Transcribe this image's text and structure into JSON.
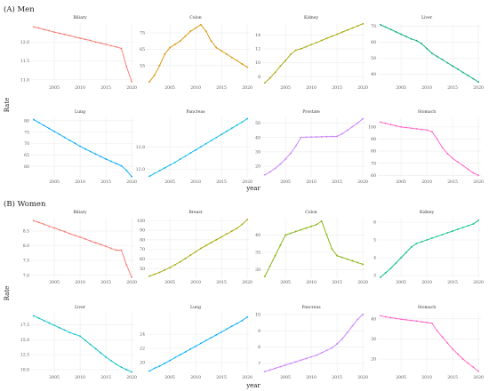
{
  "sections": [
    {
      "title": "(A) Men"
    },
    {
      "title": "(B) Women"
    }
  ],
  "y_label": "Rate",
  "x_label": "year",
  "chart_data": [
    {
      "type": "line",
      "section": "(A) Men",
      "title": "Biliary",
      "color": "#f8766d",
      "x": [
        2001,
        2002,
        2003,
        2004,
        2005,
        2006,
        2007,
        2008,
        2009,
        2010,
        2011,
        2012,
        2013,
        2014,
        2015,
        2016,
        2017,
        2018,
        2019,
        2020
      ],
      "values": [
        12.4,
        12.37,
        12.33,
        12.3,
        12.26,
        12.23,
        12.2,
        12.17,
        12.13,
        12.1,
        12.07,
        12.04,
        12.0,
        11.97,
        11.94,
        11.9,
        11.87,
        11.83,
        11.35,
        10.95
      ],
      "ylim": [
        10.9,
        12.5
      ],
      "yticks": [
        11.0,
        11.5,
        12.0
      ],
      "xticks": [
        2005,
        2010,
        2015,
        2020
      ]
    },
    {
      "type": "line",
      "section": "(A) Men",
      "title": "Colon",
      "color": "#d89000",
      "x": [
        2001,
        2002,
        2003,
        2004,
        2005,
        2006,
        2007,
        2008,
        2009,
        2010,
        2011,
        2012,
        2013,
        2014,
        2015,
        2016,
        2017,
        2018,
        2019,
        2020
      ],
      "values": [
        45,
        49,
        55,
        62,
        66,
        68,
        70,
        73,
        76,
        78,
        80,
        76,
        70,
        66,
        64,
        62,
        60,
        58,
        56,
        54
      ],
      "ylim": [
        44,
        81
      ],
      "yticks": [
        55,
        65,
        75
      ],
      "xticks": [
        2005,
        2010,
        2015,
        2020
      ]
    },
    {
      "type": "line",
      "section": "(A) Men",
      "title": "Kidney",
      "color": "#a3a500",
      "x": [
        2001,
        2002,
        2003,
        2004,
        2005,
        2006,
        2007,
        2008,
        2009,
        2010,
        2011,
        2012,
        2013,
        2014,
        2015,
        2016,
        2017,
        2018,
        2019,
        2020
      ],
      "values": [
        7.1,
        7.8,
        8.6,
        9.5,
        10.3,
        11.2,
        11.8,
        12.0,
        12.3,
        12.6,
        12.9,
        13.2,
        13.5,
        13.8,
        14.1,
        14.4,
        14.7,
        15.0,
        15.3,
        15.6
      ],
      "ylim": [
        7.0,
        15.7
      ],
      "yticks": [
        8,
        10,
        12,
        14
      ],
      "xticks": [
        2005,
        2010,
        2015,
        2020
      ]
    },
    {
      "type": "line",
      "section": "(A) Men",
      "title": "Liver",
      "color": "#00b06f",
      "x": [
        2001,
        2002,
        2003,
        2004,
        2005,
        2006,
        2007,
        2008,
        2009,
        2010,
        2011,
        2012,
        2013,
        2014,
        2015,
        2016,
        2017,
        2018,
        2019,
        2020
      ],
      "values": [
        71,
        69.5,
        68,
        66.5,
        65,
        63.5,
        62,
        61,
        59,
        56,
        53,
        51,
        49,
        47,
        45,
        43,
        41,
        39,
        37,
        35
      ],
      "ylim": [
        34,
        72
      ],
      "yticks": [
        40,
        50,
        60,
        70
      ],
      "xticks": [
        2005,
        2010,
        2015,
        2020
      ]
    },
    {
      "type": "line",
      "section": "(A) Men",
      "title": "Lung",
      "color": "#00a9ff",
      "x": [
        2001,
        2002,
        2003,
        2004,
        2005,
        2006,
        2007,
        2008,
        2009,
        2010,
        2011,
        2012,
        2013,
        2014,
        2015,
        2016,
        2017,
        2018,
        2019,
        2020
      ],
      "values": [
        80.5,
        79.2,
        77.9,
        76.6,
        75.3,
        74.0,
        72.7,
        71.4,
        70.1,
        68.8,
        67.6,
        66.5,
        65.4,
        64.3,
        63.2,
        62.2,
        61.2,
        60.2,
        58.2,
        55.5
      ],
      "ylim": [
        55,
        81.5
      ],
      "yticks": [
        60,
        65,
        70,
        75,
        80
      ],
      "xticks": [
        2005,
        2010,
        2015,
        2020
      ]
    },
    {
      "type": "line",
      "section": "(A) Men",
      "title": "Pancreas",
      "color": "#00b8e7",
      "x": [
        2001,
        2002,
        2003,
        2004,
        2005,
        2006,
        2007,
        2008,
        2009,
        2010,
        2011,
        2012,
        2013,
        2014,
        2015,
        2016,
        2017,
        2018,
        2019,
        2020
      ],
      "values": [
        11.75,
        11.85,
        11.95,
        12.05,
        12.15,
        12.25,
        12.36,
        12.47,
        12.58,
        12.69,
        12.8,
        12.91,
        13.02,
        13.13,
        13.24,
        13.35,
        13.46,
        13.57,
        13.68,
        13.8
      ],
      "ylim": [
        11.7,
        13.85
      ],
      "yticks": [
        12.0,
        12.8
      ],
      "xticks": [
        2005,
        2010,
        2015,
        2020
      ]
    },
    {
      "type": "line",
      "section": "(A) Men",
      "title": "Prostate",
      "color": "#c77cff",
      "x": [
        2001,
        2002,
        2003,
        2004,
        2005,
        2006,
        2007,
        2008,
        2009,
        2010,
        2011,
        2012,
        2013,
        2014,
        2015,
        2016,
        2017,
        2018,
        2019,
        2020
      ],
      "values": [
        14,
        16,
        18.5,
        21.5,
        25,
        29,
        34,
        40,
        40.2,
        40.3,
        40.4,
        40.5,
        40.6,
        40.7,
        40.8,
        42.5,
        45,
        47.5,
        50,
        53
      ],
      "ylim": [
        12,
        54
      ],
      "yticks": [
        20,
        30,
        40,
        50
      ],
      "xticks": [
        2005,
        2010,
        2015,
        2020
      ]
    },
    {
      "type": "line",
      "section": "(A) Men",
      "title": "Stomach",
      "color": "#ff61c3",
      "x": [
        2001,
        2002,
        2003,
        2004,
        2005,
        2006,
        2007,
        2008,
        2009,
        2010,
        2011,
        2012,
        2013,
        2014,
        2015,
        2016,
        2017,
        2018,
        2019,
        2020
      ],
      "values": [
        104,
        103,
        102,
        101,
        100,
        99.5,
        99,
        98.5,
        98,
        97.5,
        96,
        90,
        83,
        78,
        74,
        71,
        68,
        65,
        62,
        60
      ],
      "ylim": [
        58,
        108
      ],
      "yticks": [
        60,
        70,
        80,
        90,
        100
      ],
      "xticks": [
        2005,
        2010,
        2015,
        2020
      ]
    },
    {
      "type": "line",
      "section": "(B) Women",
      "title": "Biliary",
      "color": "#f8766d",
      "x": [
        2001,
        2002,
        2003,
        2004,
        2005,
        2006,
        2007,
        2008,
        2009,
        2010,
        2011,
        2012,
        2013,
        2014,
        2015,
        2016,
        2017,
        2018,
        2019,
        2020
      ],
      "values": [
        8.85,
        8.79,
        8.73,
        8.66,
        8.6,
        8.54,
        8.48,
        8.41,
        8.35,
        8.29,
        8.23,
        8.16,
        8.1,
        8.04,
        7.98,
        7.91,
        7.85,
        7.85,
        7.35,
        6.93
      ],
      "ylim": [
        6.9,
        8.95
      ],
      "yticks": [
        7.0,
        7.5,
        8.0,
        8.5
      ],
      "xticks": [
        2005,
        2010,
        2015,
        2020
      ]
    },
    {
      "type": "line",
      "section": "(B) Women",
      "title": "Breast",
      "color": "#a3a500",
      "x": [
        2001,
        2002,
        2003,
        2004,
        2005,
        2006,
        2007,
        2008,
        2009,
        2010,
        2011,
        2012,
        2013,
        2014,
        2015,
        2016,
        2017,
        2018,
        2019,
        2020
      ],
      "values": [
        42,
        44,
        46,
        48.5,
        51,
        54,
        57,
        60.5,
        64,
        67.5,
        71,
        74,
        77,
        80,
        83,
        86,
        89,
        92,
        96,
        101
      ],
      "ylim": [
        40,
        103
      ],
      "yticks": [
        50,
        60,
        70,
        80,
        90,
        100
      ],
      "xticks": [
        2005,
        2010,
        2015,
        2020
      ]
    },
    {
      "type": "line",
      "section": "(B) Women",
      "title": "Colon",
      "color": "#7cae00",
      "x": [
        2001,
        2002,
        2003,
        2004,
        2005,
        2006,
        2007,
        2008,
        2009,
        2010,
        2011,
        2012,
        2013,
        2014,
        2015,
        2016,
        2017,
        2018,
        2019,
        2020
      ],
      "values": [
        28,
        31,
        34,
        37,
        40,
        40.5,
        41,
        41.5,
        42,
        42.5,
        43,
        44,
        40,
        36,
        34,
        33.5,
        33,
        32.5,
        32,
        31.5
      ],
      "ylim": [
        27.5,
        45
      ],
      "yticks": [
        30,
        35,
        40
      ],
      "xticks": [
        2005,
        2010,
        2015,
        2020
      ]
    },
    {
      "type": "line",
      "section": "(B) Women",
      "title": "Kidney",
      "color": "#00bf7d",
      "x": [
        2001,
        2002,
        2003,
        2004,
        2005,
        2006,
        2007,
        2008,
        2009,
        2010,
        2011,
        2012,
        2013,
        2014,
        2015,
        2016,
        2017,
        2018,
        2019,
        2020
      ],
      "values": [
        2.9,
        3.15,
        3.4,
        3.7,
        4.0,
        4.3,
        4.6,
        4.8,
        4.9,
        5.0,
        5.1,
        5.2,
        5.3,
        5.4,
        5.5,
        5.6,
        5.7,
        5.8,
        5.9,
        6.1
      ],
      "ylim": [
        2.85,
        6.25
      ],
      "yticks": [
        3,
        4,
        5,
        6
      ],
      "xticks": [
        2005,
        2010,
        2015,
        2020
      ]
    },
    {
      "type": "line",
      "section": "(B) Women",
      "title": "Liver",
      "color": "#00bfc4",
      "x": [
        2001,
        2002,
        2003,
        2004,
        2005,
        2006,
        2007,
        2008,
        2009,
        2010,
        2011,
        2012,
        2013,
        2014,
        2015,
        2016,
        2017,
        2018,
        2019,
        2020
      ],
      "values": [
        19.0,
        18.6,
        18.2,
        17.8,
        17.4,
        17.0,
        16.6,
        16.2,
        15.9,
        15.6,
        14.9,
        14.2,
        13.5,
        12.8,
        12.1,
        11.5,
        10.9,
        10.4,
        10.0,
        9.6
      ],
      "ylim": [
        9.4,
        19.5
      ],
      "yticks": [
        10.0,
        12.5,
        15.0,
        17.5
      ],
      "xticks": [
        2005,
        2010,
        2015,
        2020
      ]
    },
    {
      "type": "line",
      "section": "(B) Women",
      "title": "Lung",
      "color": "#00a9ff",
      "x": [
        2001,
        2002,
        2003,
        2004,
        2005,
        2006,
        2007,
        2008,
        2009,
        2010,
        2011,
        2012,
        2013,
        2014,
        2015,
        2016,
        2017,
        2018,
        2019,
        2020
      ],
      "values": [
        18.8,
        19.2,
        19.5,
        19.9,
        20.3,
        20.7,
        21.1,
        21.5,
        21.9,
        22.3,
        22.7,
        23.1,
        23.5,
        23.9,
        24.3,
        24.7,
        25.1,
        25.5,
        25.9,
        26.4
      ],
      "ylim": [
        18.5,
        27
      ],
      "yticks": [
        20,
        22,
        24
      ],
      "xticks": [
        2005,
        2010,
        2015,
        2020
      ]
    },
    {
      "type": "line",
      "section": "(B) Women",
      "title": "Pancreas",
      "color": "#c77cff",
      "x": [
        2001,
        2002,
        2003,
        2004,
        2005,
        2006,
        2007,
        2008,
        2009,
        2010,
        2011,
        2012,
        2013,
        2014,
        2015,
        2016,
        2017,
        2018,
        2019,
        2020
      ],
      "values": [
        6.5,
        6.6,
        6.7,
        6.8,
        6.9,
        7.0,
        7.1,
        7.2,
        7.3,
        7.4,
        7.5,
        7.65,
        7.8,
        7.95,
        8.2,
        8.5,
        8.9,
        9.3,
        9.7,
        10.0
      ],
      "ylim": [
        6.4,
        10.1
      ],
      "yticks": [
        7,
        8,
        9,
        10
      ],
      "xticks": [
        2005,
        2010,
        2015,
        2020
      ]
    },
    {
      "type": "line",
      "section": "(B) Women",
      "title": "Stomach",
      "color": "#ff61c3",
      "x": [
        2001,
        2002,
        2003,
        2004,
        2005,
        2006,
        2007,
        2008,
        2009,
        2010,
        2011,
        2012,
        2013,
        2014,
        2015,
        2016,
        2017,
        2018,
        2019,
        2020
      ],
      "values": [
        41.5,
        41,
        40.6,
        40.2,
        39.8,
        39.5,
        39.2,
        38.9,
        38.5,
        38.2,
        37.8,
        34,
        31,
        28,
        25,
        22.5,
        20,
        18,
        16,
        14
      ],
      "ylim": [
        13,
        43
      ],
      "yticks": [
        20,
        30,
        40
      ],
      "xticks": [
        2005,
        2010,
        2015,
        2020
      ]
    }
  ]
}
